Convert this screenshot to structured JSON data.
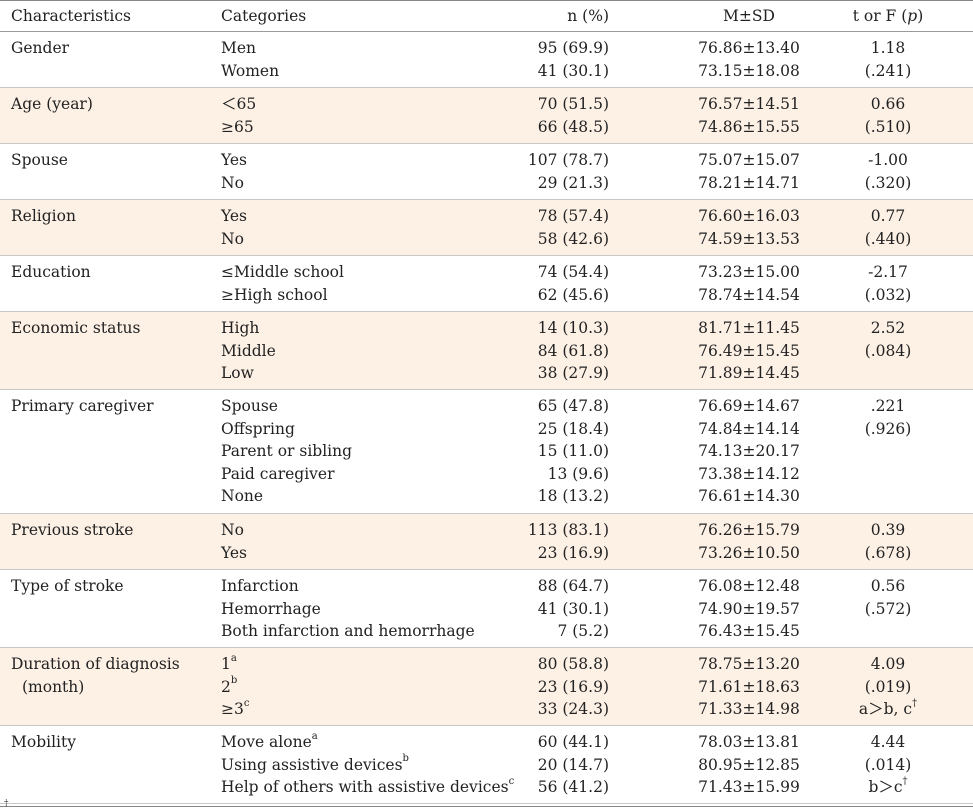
{
  "header": {
    "characteristics": "Characteristics",
    "categories": "Categories",
    "n_pct": "n (%)",
    "m_sd": "M±SD",
    "t_or_f": "t or F (",
    "p": "p",
    "close_paren": ")"
  },
  "groups": [
    {
      "characteristic": "Gender",
      "characteristic2": "",
      "shaded": false,
      "rows": [
        {
          "category": "Men",
          "cat_sup": "",
          "n": "95 (69.9)",
          "msd": "76.86±13.40",
          "stat": "1.18",
          "stat_sup": ""
        },
        {
          "category": "Women",
          "cat_sup": "",
          "n": "41 (30.1)",
          "msd": "73.15±18.08",
          "stat": "(.241)",
          "stat_sup": ""
        }
      ]
    },
    {
      "characteristic": "Age (year)",
      "characteristic2": "",
      "shaded": true,
      "rows": [
        {
          "category": "＜65",
          "cat_sup": "",
          "n": "70 (51.5)",
          "msd": "76.57±14.51",
          "stat": "0.66",
          "stat_sup": ""
        },
        {
          "category": "≥65",
          "cat_sup": "",
          "n": "66 (48.5)",
          "msd": "74.86±15.55",
          "stat": "(.510)",
          "stat_sup": ""
        }
      ]
    },
    {
      "characteristic": "Spouse",
      "characteristic2": "",
      "shaded": false,
      "rows": [
        {
          "category": "Yes",
          "cat_sup": "",
          "n": "107 (78.7)",
          "msd": "75.07±15.07",
          "stat": "-1.00",
          "stat_sup": ""
        },
        {
          "category": "No",
          "cat_sup": "",
          "n": "29 (21.3)",
          "msd": "78.21±14.71",
          "stat": "(.320)",
          "stat_sup": ""
        }
      ]
    },
    {
      "characteristic": "Religion",
      "characteristic2": "",
      "shaded": true,
      "rows": [
        {
          "category": "Yes",
          "cat_sup": "",
          "n": "78 (57.4)",
          "msd": "76.60±16.03",
          "stat": "0.77",
          "stat_sup": ""
        },
        {
          "category": "No",
          "cat_sup": "",
          "n": "58 (42.6)",
          "msd": "74.59±13.53",
          "stat": "(.440)",
          "stat_sup": ""
        }
      ]
    },
    {
      "characteristic": "Education",
      "characteristic2": "",
      "shaded": false,
      "rows": [
        {
          "category": "≤Middle school",
          "cat_sup": "",
          "n": "74 (54.4)",
          "msd": "73.23±15.00",
          "stat": "-2.17",
          "stat_sup": ""
        },
        {
          "category": "≥High school",
          "cat_sup": "",
          "n": "62 (45.6)",
          "msd": "78.74±14.54",
          "stat": "(.032)",
          "stat_sup": ""
        }
      ]
    },
    {
      "characteristic": "Economic status",
      "characteristic2": "",
      "shaded": true,
      "rows": [
        {
          "category": "High",
          "cat_sup": "",
          "n": "14 (10.3)",
          "msd": "81.71±11.45",
          "stat": "2.52",
          "stat_sup": ""
        },
        {
          "category": "Middle",
          "cat_sup": "",
          "n": "84 (61.8)",
          "msd": "76.49±15.45",
          "stat": "(.084)",
          "stat_sup": ""
        },
        {
          "category": "Low",
          "cat_sup": "",
          "n": "38 (27.9)",
          "msd": "71.89±14.45",
          "stat": "",
          "stat_sup": ""
        }
      ]
    },
    {
      "characteristic": "Primary caregiver",
      "characteristic2": "",
      "shaded": false,
      "rows": [
        {
          "category": "Spouse",
          "cat_sup": "",
          "n": "65 (47.8)",
          "msd": "76.69±14.67",
          "stat": ".221",
          "stat_sup": ""
        },
        {
          "category": "Offspring",
          "cat_sup": "",
          "n": "25 (18.4)",
          "msd": "74.84±14.14",
          "stat": "(.926)",
          "stat_sup": ""
        },
        {
          "category": "Parent or sibling",
          "cat_sup": "",
          "n": "15 (11.0)",
          "msd": "74.13±20.17",
          "stat": "",
          "stat_sup": ""
        },
        {
          "category": "Paid caregiver",
          "cat_sup": "",
          "n": "13 (9.6)",
          "msd": "73.38±14.12",
          "stat": "",
          "stat_sup": ""
        },
        {
          "category": "None",
          "cat_sup": "",
          "n": "18 (13.2)",
          "msd": "76.61±14.30",
          "stat": "",
          "stat_sup": ""
        }
      ]
    },
    {
      "characteristic": "Previous stroke",
      "characteristic2": "",
      "shaded": true,
      "rows": [
        {
          "category": "No",
          "cat_sup": "",
          "n": "113 (83.1)",
          "msd": "76.26±15.79",
          "stat": "0.39",
          "stat_sup": ""
        },
        {
          "category": "Yes",
          "cat_sup": "",
          "n": "23 (16.9)",
          "msd": "73.26±10.50",
          "stat": "(.678)",
          "stat_sup": ""
        }
      ]
    },
    {
      "characteristic": "Type of stroke",
      "characteristic2": "",
      "shaded": false,
      "rows": [
        {
          "category": "Infarction",
          "cat_sup": "",
          "n": "88 (64.7)",
          "msd": "76.08±12.48",
          "stat": "0.56",
          "stat_sup": ""
        },
        {
          "category": "Hemorrhage",
          "cat_sup": "",
          "n": "41 (30.1)",
          "msd": "74.90±19.57",
          "stat": "(.572)",
          "stat_sup": ""
        },
        {
          "category": "Both infarction and hemorrhage",
          "cat_sup": "",
          "n": "7 (5.2)",
          "msd": "76.43±15.45",
          "stat": "",
          "stat_sup": ""
        }
      ]
    },
    {
      "characteristic": "Duration of diagnosis",
      "characteristic2": "(month)",
      "shaded": true,
      "rows": [
        {
          "category": "1",
          "cat_sup": "a",
          "n": "80 (58.8)",
          "msd": "78.75±13.20",
          "stat": "4.09",
          "stat_sup": ""
        },
        {
          "category": "2",
          "cat_sup": "b",
          "n": "23 (16.9)",
          "msd": "71.61±18.63",
          "stat": "(.019)",
          "stat_sup": ""
        },
        {
          "category": "≥3",
          "cat_sup": "c",
          "n": "33 (24.3)",
          "msd": "71.33±14.98",
          "stat": "a＞b, c",
          "stat_sup": "†"
        }
      ]
    },
    {
      "characteristic": "Mobility",
      "characteristic2": "",
      "shaded": false,
      "rows": [
        {
          "category": "Move alone",
          "cat_sup": "a",
          "n": "60 (44.1)",
          "msd": "78.03±13.81",
          "stat": "4.44",
          "stat_sup": ""
        },
        {
          "category": "Using assistive devices",
          "cat_sup": "b",
          "n": "20 (14.7)",
          "msd": "80.95±12.85",
          "stat": "(.014)",
          "stat_sup": ""
        },
        {
          "category": "Help of others with assistive devices",
          "cat_sup": "c",
          "n": "56 (41.2)",
          "msd": "71.43±15.99",
          "stat": "b＞c",
          "stat_sup": "†"
        }
      ]
    }
  ],
  "footer_mark": "†"
}
